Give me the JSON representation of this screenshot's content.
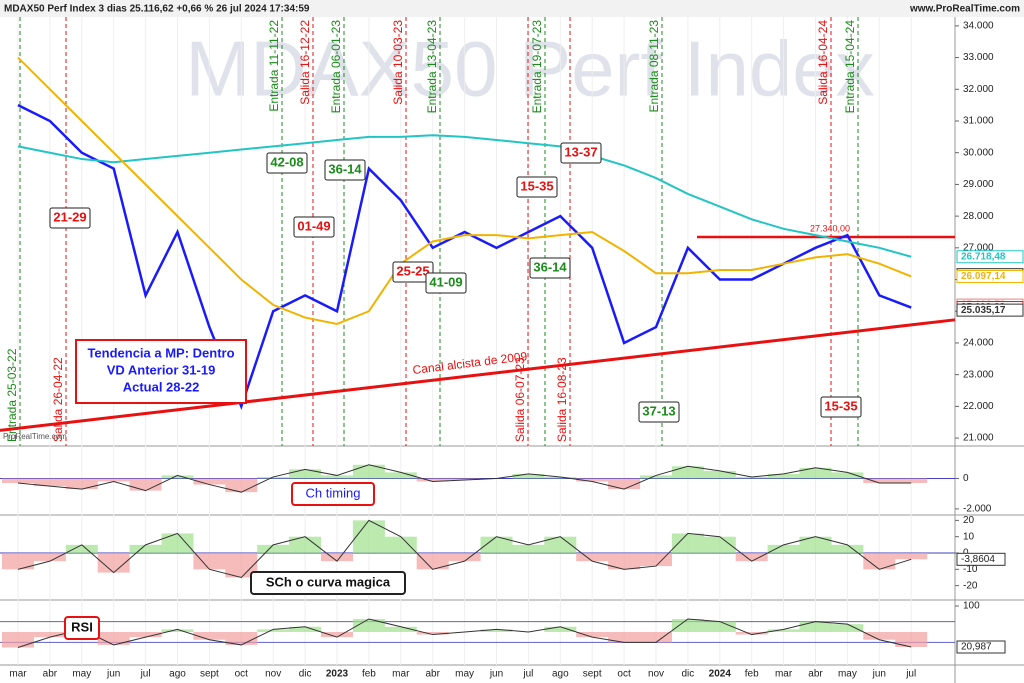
{
  "header": {
    "title": "MDAX50 Perf Index 3 dias 25.116,62 +0,66 % 26 jul 2024 17:34:59",
    "site": "www.ProRealTime.com",
    "watermark": "MDAX50 Perf Index",
    "credit": "ProRealTime.com"
  },
  "chart_data": [
    {
      "type": "line",
      "categories": [
        "mar",
        "abr",
        "may",
        "jun",
        "jul",
        "ago",
        "sept",
        "oct",
        "nov",
        "dic",
        "2023",
        "feb",
        "mar",
        "abr",
        "may",
        "jun",
        "jul",
        "ago",
        "sept",
        "oct",
        "nov",
        "dic",
        "2024",
        "feb",
        "mar",
        "abr",
        "may",
        "jun",
        "jul"
      ],
      "series": [
        {
          "color": "#1a1aff",
          "values": [
            31500,
            31000,
            30000,
            29500,
            25500,
            27500,
            24500,
            22000,
            25000,
            25500,
            25000,
            29500,
            28500,
            27000,
            27500,
            27000,
            27500,
            28000,
            27000,
            24000,
            24500,
            27000,
            26000,
            26000,
            26500,
            27000,
            27400,
            25500,
            25116.62
          ]
        },
        {
          "color": "#22c4c4",
          "values": [
            30200,
            30000,
            29800,
            29700,
            29800,
            29900,
            30000,
            30100,
            30200,
            30300,
            30400,
            30500,
            30500,
            30550,
            30500,
            30400,
            30300,
            30200,
            29900,
            29600,
            29200,
            28700,
            28300,
            27900,
            27600,
            27400,
            27200,
            27000,
            26718.48
          ]
        },
        {
          "color": "#f0b400",
          "values": [
            33000,
            32000,
            31000,
            30000,
            29000,
            28000,
            27000,
            26000,
            25200,
            24800,
            24600,
            25000,
            26500,
            27200,
            27400,
            27400,
            27300,
            27400,
            27500,
            26900,
            26200,
            26200,
            26300,
            26300,
            26500,
            26700,
            26800,
            26500,
            26097.14
          ]
        }
      ],
      "ylim": [
        20750,
        34280
      ],
      "yticks": [
        {
          "value": 21000,
          "label": "21.000"
        },
        {
          "value": 22000,
          "label": "22.000"
        },
        {
          "value": 23000,
          "label": "23.000"
        },
        {
          "value": 24000,
          "label": "24.000"
        },
        {
          "value": 25000,
          "label": "25.000"
        },
        {
          "value": 26000,
          "label": "26.000"
        },
        {
          "value": 27000,
          "label": "27.000"
        },
        {
          "value": 28000,
          "label": "28.000"
        },
        {
          "value": 29000,
          "label": "29.000"
        },
        {
          "value": 30000,
          "label": "30.000"
        },
        {
          "value": 31000,
          "label": "31.000"
        },
        {
          "value": 32000,
          "label": "32.000"
        },
        {
          "value": 33000,
          "label": "33.000"
        },
        {
          "value": 34000,
          "label": "34.000"
        }
      ],
      "channel": {
        "label": "Canal alcista de 2009",
        "values": [
          21310,
          24570
        ],
        "color": "#e81010"
      },
      "resistance": {
        "label": "27.340,00",
        "value": 27340,
        "color": "#e81010"
      },
      "price_labels": [
        {
          "value": 26718.48,
          "label": "26.718,48",
          "color": "#22c4c4"
        },
        {
          "value": 26153.53,
          "label": "26.153,53",
          "color": "#333333"
        },
        {
          "value": 26097.14,
          "label": "26.097,14",
          "color": "#f0b400"
        },
        {
          "value": 25193.59,
          "label": "25.193,59",
          "color": "#e88080"
        },
        {
          "value": 25116.62,
          "label": "25.116,62",
          "color": "#e81010"
        },
        {
          "value": 25035.17,
          "label": "25.035,17",
          "color": "#333333"
        }
      ],
      "signals": [
        {
          "label": "Entrada 25-03-22",
          "color": "#1a8c1a"
        },
        {
          "label": "Salida 26-04-22",
          "color": "#e81010"
        },
        {
          "label": "Entrada 11-11-22",
          "color": "#1a8c1a"
        },
        {
          "label": "Salida 16-12-22",
          "color": "#e81010"
        },
        {
          "label": "Entrada 06-01-23",
          "color": "#1a8c1a"
        },
        {
          "label": "Salida 10-03-23",
          "color": "#e81010"
        },
        {
          "label": "Entrada 13-04-23",
          "color": "#1a8c1a"
        },
        {
          "label": "Salida 06-07-23",
          "color": "#e81010"
        },
        {
          "label": "Entrada 19-07-23",
          "color": "#1a8c1a"
        },
        {
          "label": "Salida 16-08-23",
          "color": "#e81010"
        },
        {
          "label": "Entrada 08-11-23",
          "color": "#1a8c1a"
        },
        {
          "label": "Salida 16-04-24",
          "color": "#e81010"
        },
        {
          "label": "Entrada 15-04-24",
          "color": "#1a8c1a"
        }
      ],
      "annotations": [
        {
          "text": "21-29",
          "color": "#e81010"
        },
        {
          "text": "42-08",
          "color": "#1a8c1a"
        },
        {
          "text": "36-14",
          "color": "#1a8c1a"
        },
        {
          "text": "01-49",
          "color": "#e81010"
        },
        {
          "text": "25-25",
          "color": "#e81010"
        },
        {
          "text": "41-09",
          "color": "#1a8c1a"
        },
        {
          "text": "15-35",
          "color": "#e81010"
        },
        {
          "text": "13-37",
          "color": "#e81010"
        },
        {
          "text": "36-14",
          "color": "#1a8c1a"
        },
        {
          "text": "37-13",
          "color": "#1a8c1a"
        },
        {
          "text": "15-35",
          "color": "#e81010"
        }
      ],
      "info_box": [
        "Tendencia a MP: Dentro",
        "VD Anterior 31-19",
        "Actual 28-22"
      ]
    },
    {
      "type": "area",
      "annotation": "Ch timing",
      "values": [
        -300,
        -500,
        -700,
        -200,
        -800,
        200,
        -400,
        -900,
        100,
        600,
        200,
        900,
        400,
        -200,
        -100,
        0,
        300,
        100,
        -200,
        -700,
        200,
        800,
        500,
        100,
        300,
        700,
        400,
        -300,
        -300
      ],
      "ylim": [
        -2400,
        2133
      ],
      "yticks": [
        0,
        {
          "value": -2000,
          "label": "-2.000"
        }
      ]
    },
    {
      "type": "area",
      "annotation": "SCh o curva magica",
      "values": [
        -10,
        -5,
        5,
        -12,
        5,
        12,
        -10,
        -15,
        5,
        10,
        -5,
        20,
        10,
        -10,
        -5,
        10,
        5,
        10,
        -5,
        -10,
        -8,
        12,
        10,
        -5,
        5,
        10,
        5,
        -10,
        -3.8604
      ],
      "value_labels": [
        null,
        null,
        null,
        null,
        null,
        null,
        null,
        null,
        null,
        null,
        null,
        null,
        null,
        null,
        null,
        null,
        null,
        null,
        null,
        null,
        null,
        null,
        null,
        null,
        null,
        null,
        null,
        null,
        "-3,8604"
      ],
      "ylim": [
        -28.8,
        23.3
      ],
      "yticks": [
        20,
        10,
        0,
        -10,
        -20
      ]
    },
    {
      "type": "rsi",
      "annotation": "RSI",
      "values": [
        20,
        40,
        55,
        25,
        40,
        55,
        35,
        25,
        55,
        60,
        40,
        75,
        60,
        45,
        50,
        55,
        50,
        60,
        40,
        30,
        30,
        75,
        70,
        45,
        55,
        70,
        65,
        35,
        20.987
      ],
      "value_labels": [
        null,
        null,
        null,
        null,
        null,
        null,
        null,
        null,
        null,
        null,
        null,
        null,
        null,
        null,
        null,
        null,
        null,
        null,
        null,
        null,
        null,
        null,
        null,
        null,
        null,
        null,
        null,
        null,
        "20,987"
      ],
      "bands": [
        70,
        30
      ],
      "ylim": [
        -13.7,
        111.6
      ],
      "yticks": [
        100
      ]
    }
  ]
}
